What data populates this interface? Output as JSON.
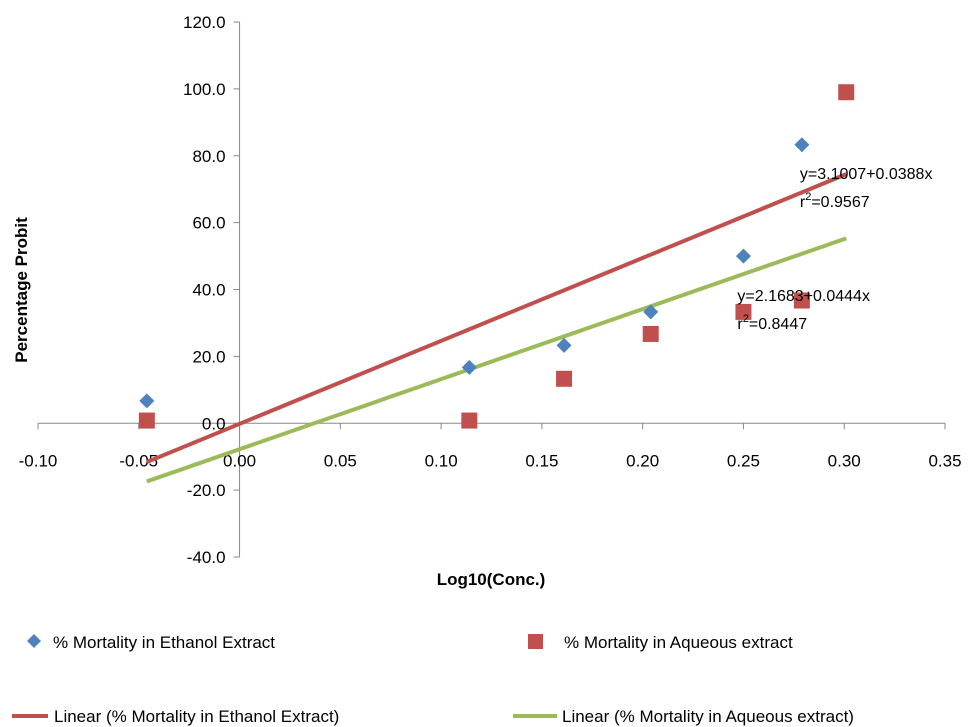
{
  "chart_data": {
    "type": "scatter",
    "title": "",
    "xlabel": "Log10(Conc.)",
    "ylabel": "Percentage Probit",
    "xlim": [
      -0.1,
      0.35
    ],
    "ylim": [
      -40.0,
      120.0
    ],
    "x_ticks": [
      -0.1,
      -0.05,
      0.0,
      0.05,
      0.1,
      0.15,
      0.2,
      0.25,
      0.3,
      0.35
    ],
    "y_ticks": [
      -40.0,
      -20.0,
      0.0,
      20.0,
      40.0,
      60.0,
      80.0,
      100.0,
      120.0
    ],
    "x_tick_labels": [
      "-0.10",
      "-0.05",
      "0.00",
      "0.05",
      "0.10",
      "0.15",
      "0.20",
      "0.25",
      "0.30",
      "0.35"
    ],
    "y_tick_labels": [
      "-40.0",
      "-20.0",
      "0.0",
      "20.0",
      "40.0",
      "60.0",
      "80.0",
      "100.0",
      "120.0"
    ],
    "grid": false,
    "legend_position": "bottom",
    "series": [
      {
        "name": "% Mortality in Ethanol Extract",
        "marker": "diamond",
        "color": "#4F81BD",
        "points": [
          {
            "x": -0.046,
            "y": 6.7
          },
          {
            "x": 0.114,
            "y": 16.7
          },
          {
            "x": 0.161,
            "y": 23.3
          },
          {
            "x": 0.204,
            "y": 33.3
          },
          {
            "x": 0.25,
            "y": 50.0
          },
          {
            "x": 0.279,
            "y": 83.3
          }
        ]
      },
      {
        "name": "% Mortality in Aqueous extract",
        "marker": "square",
        "color": "#C0504D",
        "points": [
          {
            "x": -0.046,
            "y": 0.8
          },
          {
            "x": 0.114,
            "y": 0.8
          },
          {
            "x": 0.161,
            "y": 13.3
          },
          {
            "x": 0.204,
            "y": 26.7
          },
          {
            "x": 0.25,
            "y": 33.3
          },
          {
            "x": 0.279,
            "y": 36.7
          },
          {
            "x": 0.301,
            "y": 99.0
          }
        ]
      }
    ],
    "trendlines": [
      {
        "name": "Linear (% Mortality in Ethanol Extract)",
        "color": "#C0504D",
        "x_start": -0.046,
        "y_start": -11.6,
        "x_end": 0.301,
        "y_end": 74.5
      },
      {
        "name": "Linear (% Mortality in Aqueous extract)",
        "color": "#9BBB59",
        "x_start": -0.046,
        "y_start": -17.4,
        "x_end": 0.301,
        "y_end": 55.3
      }
    ],
    "annotations": [
      {
        "equation": "y=3.1007+0.0388x",
        "r_prefix": "r",
        "r_sup": "2",
        "r_value": "=0.9567",
        "x": 0.278,
        "y": 73.0
      },
      {
        "equation": "y=2.1683+0.0444x",
        "r_prefix": "r",
        "r_sup": "2",
        "r_value": "=0.8447",
        "x": 0.247,
        "y": 36.5
      }
    ]
  }
}
